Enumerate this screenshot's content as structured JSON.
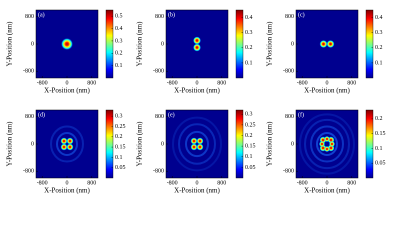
{
  "chart_data": [
    {
      "type": "heatmap",
      "label": "(a)",
      "xlabel": "X-Position (nm)",
      "ylabel": "Y-Position (nm)",
      "xlim": [
        -1000,
        1000
      ],
      "ylim": [
        -1000,
        1000
      ],
      "xticks": [
        -800,
        0,
        800
      ],
      "yticks": [
        -800,
        0,
        800
      ],
      "clim": [
        0,
        0.55
      ],
      "cticks": [
        0.1,
        0.2,
        0.3,
        0.4,
        0.5
      ]
    },
    {
      "type": "heatmap",
      "label": "(b)",
      "xlabel": "X-Position (nm)",
      "ylabel": "Y-Position (nm)",
      "xlim": [
        -1000,
        1000
      ],
      "ylim": [
        -1000,
        1000
      ],
      "xticks": [
        -800,
        0,
        800
      ],
      "yticks": [
        -800,
        0,
        800
      ],
      "clim": [
        0,
        0.45
      ],
      "cticks": [
        0.1,
        0.2,
        0.3,
        0.4
      ]
    },
    {
      "type": "heatmap",
      "label": "(c)",
      "xlabel": "X-Position (nm)",
      "ylabel": "Y-Position (nm)",
      "xlim": [
        -1000,
        1000
      ],
      "ylim": [
        -1000,
        1000
      ],
      "xticks": [
        -800,
        0,
        800
      ],
      "yticks": [
        -800,
        0,
        800
      ],
      "clim": [
        0,
        0.45
      ],
      "cticks": [
        0.1,
        0.2,
        0.3,
        0.4
      ]
    },
    {
      "type": "heatmap",
      "label": "(d)",
      "xlabel": "X-Position (nm)",
      "ylabel": "Y-Position (nm)",
      "xlim": [
        -1000,
        1000
      ],
      "ylim": [
        -1000,
        1000
      ],
      "xticks": [
        -800,
        0,
        800
      ],
      "yticks": [
        -800,
        0,
        800
      ],
      "clim": [
        0,
        0.33
      ],
      "cticks": [
        0.05,
        0.1,
        0.15,
        0.2,
        0.25,
        0.3
      ]
    },
    {
      "type": "heatmap",
      "label": "(e)",
      "xlabel": "X-Position (nm)",
      "ylabel": "Y-Position (nm)",
      "xlim": [
        -1000,
        1000
      ],
      "ylim": [
        -1000,
        1000
      ],
      "xticks": [
        -800,
        0,
        800
      ],
      "yticks": [
        -800,
        0,
        800
      ],
      "clim": [
        0,
        0.32
      ],
      "cticks": [
        0.05,
        0.1,
        0.15,
        0.2,
        0.25,
        0.3
      ]
    },
    {
      "type": "heatmap",
      "label": "(f)",
      "xlabel": "X-Position (nm)",
      "ylabel": "Y-Position (nm)",
      "xlim": [
        -1000,
        1000
      ],
      "ylim": [
        -1000,
        1000
      ],
      "xticks": [
        -800,
        0,
        800
      ],
      "yticks": [
        -800,
        0,
        800
      ],
      "clim": [
        0,
        0.23
      ],
      "cticks": [
        0.05,
        0.1,
        0.15,
        0.2
      ]
    }
  ]
}
